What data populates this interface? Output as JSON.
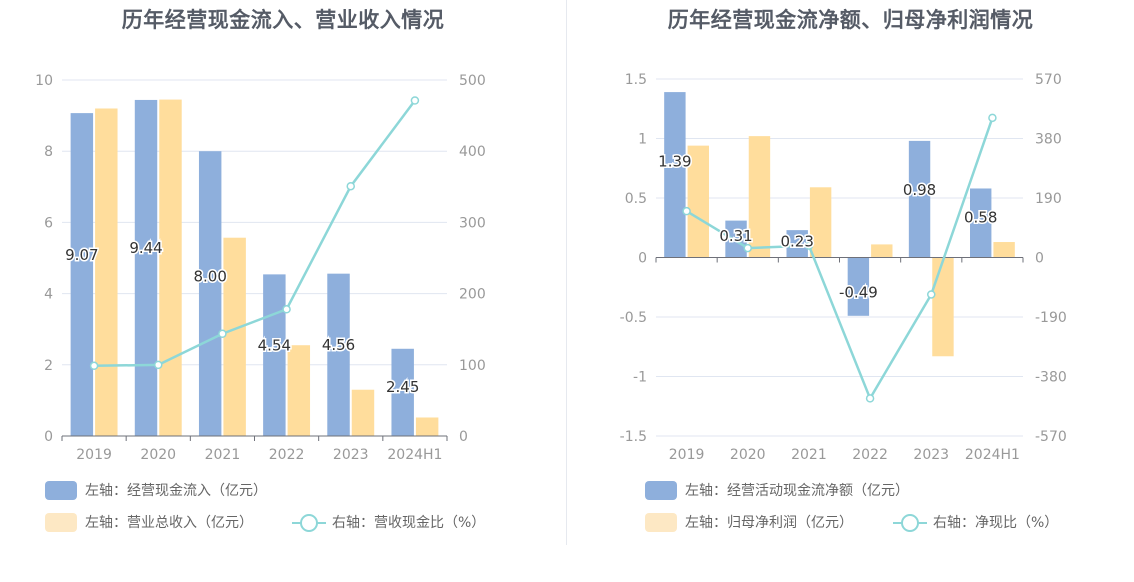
{
  "charts": [
    {
      "title": "历年经营现金流入、营业收入情况",
      "legend": {
        "bar1": "左轴：经营现金流入（亿元）",
        "bar2": "左轴：营业总收入（亿元）",
        "line": "右轴：营收现金比（%）"
      }
    },
    {
      "title": "历年经营现金流净额、归母净利润情况",
      "legend": {
        "bar1": "左轴：经营活动现金流净额（亿元）",
        "bar2": "左轴：归母净利润（亿元）",
        "line": "右轴：净现比（%）"
      }
    }
  ],
  "colors": {
    "bar1": "#8eafdc",
    "bar2": "#ffdd9c",
    "line": "#8dd7d8",
    "bar2_legend": "#fde8c4"
  },
  "chart_data": [
    {
      "type": "bar",
      "title": "历年经营现金流入、营业收入情况",
      "categories": [
        "2019",
        "2020",
        "2021",
        "2022",
        "2023",
        "2024H1"
      ],
      "left_axis": {
        "ylim": [
          0,
          10
        ],
        "ticks": [
          "0",
          "2",
          "4",
          "6",
          "8",
          "10"
        ]
      },
      "right_axis": {
        "ylim": [
          0,
          500
        ],
        "ticks": [
          "0",
          "100",
          "200",
          "300",
          "400",
          "500"
        ]
      },
      "series": [
        {
          "name": "左轴：经营现金流入（亿元）",
          "kind": "bar",
          "axis": "left",
          "values": [
            9.07,
            9.44,
            8.0,
            4.54,
            4.56,
            2.45
          ],
          "labels": [
            "9.07",
            "9.44",
            "8.00",
            "4.54",
            "4.56",
            "2.45"
          ]
        },
        {
          "name": "左轴：营业总收入（亿元）",
          "kind": "bar",
          "axis": "left",
          "values": [
            9.2,
            9.45,
            5.57,
            2.55,
            1.3,
            0.52
          ]
        },
        {
          "name": "右轴：营收现金比（%）",
          "kind": "line",
          "axis": "right",
          "values": [
            98.6,
            99.9,
            143.6,
            178.0,
            350.8,
            471.2
          ]
        }
      ],
      "grid": true,
      "legend_position": "bottom-left"
    },
    {
      "type": "bar",
      "title": "历年经营现金流净额、归母净利润情况",
      "categories": [
        "2019",
        "2020",
        "2021",
        "2022",
        "2023",
        "2024H1"
      ],
      "left_axis": {
        "ylim": [
          -1.5,
          1.5
        ],
        "ticks": [
          "-1.5",
          "-1",
          "-0.5",
          "0",
          "0.5",
          "1",
          "1.5"
        ]
      },
      "right_axis": {
        "ylim": [
          -570,
          570
        ],
        "ticks": [
          "-570",
          "-380",
          "-190",
          "0",
          "190",
          "380",
          "570"
        ]
      },
      "series": [
        {
          "name": "左轴：经营活动现金流净额（亿元）",
          "kind": "bar",
          "axis": "left",
          "values": [
            1.39,
            0.31,
            0.23,
            -0.49,
            0.98,
            0.58
          ],
          "labels": [
            "1.39",
            "0.31",
            "0.23",
            "-0.49",
            "0.98",
            "0.58"
          ]
        },
        {
          "name": "左轴：归母净利润（亿元）",
          "kind": "bar",
          "axis": "left",
          "values": [
            0.94,
            1.02,
            0.59,
            0.11,
            -0.83,
            0.13
          ]
        },
        {
          "name": "右轴：净现比（%）",
          "kind": "line",
          "axis": "right",
          "values": [
            148,
            30,
            38,
            -450,
            -118,
            446
          ]
        }
      ],
      "grid": true,
      "legend_position": "bottom-left"
    }
  ]
}
